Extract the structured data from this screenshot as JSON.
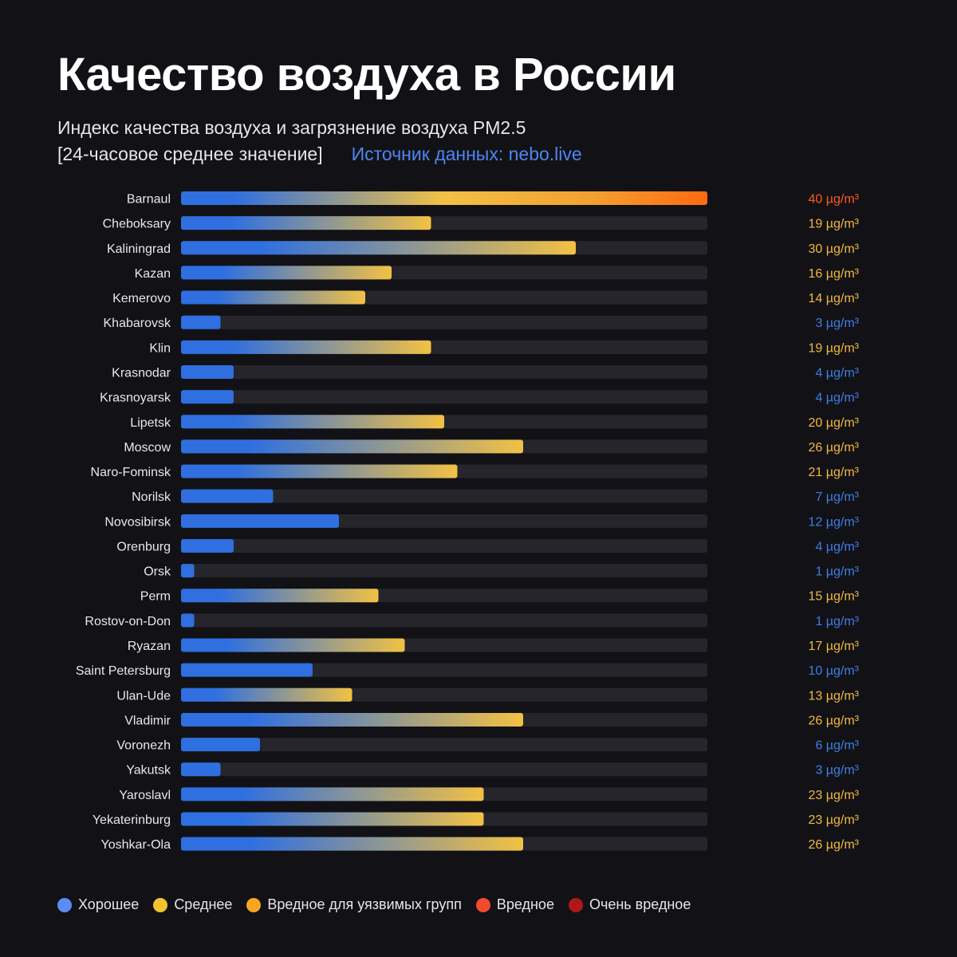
{
  "title": "Качество воздуха в России",
  "subtitle_line1": "Индекс качества воздуха и загрязнение воздуха PM2.5",
  "subtitle_line2": "[24-часовое среднее значение]",
  "source": "Источник данных: nebo.live",
  "unit": "µg/m³",
  "colors": {
    "background": "#121216",
    "track": "#25252b",
    "good": "#2f6fe0",
    "moderate": "#f2c144",
    "unhealthy_sensitive": "#f3a030",
    "unhealthy": "#ff6a10",
    "label_good": "#3f7ee6",
    "label_moderate": "#f2b840",
    "label_unhealthy": "#ff5a1f"
  },
  "legend": [
    {
      "label": "Хорошее",
      "color": "#5b8cf5"
    },
    {
      "label": "Среднее",
      "color": "#f4c430"
    },
    {
      "label": "Вредное для уязвимых групп",
      "color": "#f5a623"
    },
    {
      "label": "Вредное",
      "color": "#f04a2f"
    },
    {
      "label": "Очень вредное",
      "color": "#b01818"
    }
  ],
  "chart_data": {
    "type": "bar",
    "orientation": "horizontal",
    "title": "Качество воздуха в России",
    "xlabel": "",
    "ylabel": "",
    "xlim": [
      0,
      40
    ],
    "grid": false,
    "legend_position": "bottom",
    "categories": [
      "Barnaul",
      "Cheboksary",
      "Kaliningrad",
      "Kazan",
      "Kemerovo",
      "Khabarovsk",
      "Klin",
      "Krasnodar",
      "Krasnoyarsk",
      "Lipetsk",
      "Moscow",
      "Naro-Fominsk",
      "Norilsk",
      "Novosibirsk",
      "Orenburg",
      "Orsk",
      "Perm",
      "Rostov-on-Don",
      "Ryazan",
      "Saint Petersburg",
      "Ulan-Ude",
      "Vladimir",
      "Voronezh",
      "Yakutsk",
      "Yaroslavl",
      "Yekaterinburg",
      "Yoshkar-Ola"
    ],
    "values": [
      40,
      19,
      30,
      16,
      14,
      3,
      19,
      4,
      4,
      20,
      26,
      21,
      7,
      12,
      4,
      1,
      15,
      1,
      17,
      10,
      13,
      26,
      6,
      3,
      23,
      23,
      26
    ],
    "value_labels": [
      "40 µg/m³",
      "19 µg/m³",
      "30 µg/m³",
      "16 µg/m³",
      "14 µg/m³",
      "3 µg/m³",
      "19 µg/m³",
      "4 µg/m³",
      "4 µg/m³",
      "20 µg/m³",
      "26 µg/m³",
      "21 µg/m³",
      "7 µg/m³",
      "12 µg/m³",
      "4 µg/m³",
      "1 µg/m³",
      "15 µg/m³",
      "1 µg/m³",
      "17 µg/m³",
      "10 µg/m³",
      "13 µg/m³",
      "26 µg/m³",
      "6 µg/m³",
      "3 µg/m³",
      "23 µg/m³",
      "23 µg/m³",
      "26 µg/m³"
    ]
  }
}
